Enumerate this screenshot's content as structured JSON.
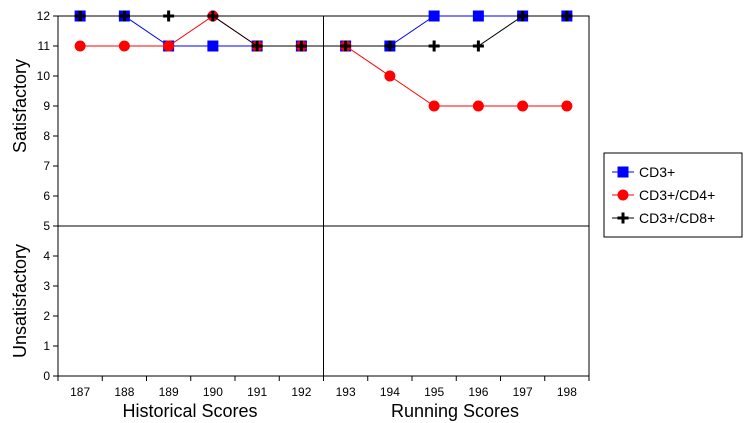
{
  "chart_data": {
    "type": "line",
    "x": [
      "187",
      "188",
      "189",
      "190",
      "191",
      "192",
      "193",
      "194",
      "195",
      "196",
      "197",
      "198"
    ],
    "ylim": [
      0,
      12
    ],
    "yticks": [
      0,
      1,
      2,
      3,
      4,
      5,
      6,
      7,
      8,
      9,
      10,
      11,
      12
    ],
    "threshold_y": 5,
    "divider_between": [
      "192",
      "193"
    ],
    "region_labels": {
      "upper": "Satisfactory",
      "lower": "Unsatisfactory",
      "left": "Historical Scores",
      "right": "Running Scores"
    },
    "grid": false,
    "legend_position": "right",
    "series": [
      {
        "name": "CD3+",
        "marker": "square",
        "color": "#0000ff",
        "line_color": "#0000ff",
        "values": [
          12,
          12,
          11,
          11,
          11,
          11,
          11,
          11,
          12,
          12,
          12,
          12
        ]
      },
      {
        "name": "CD3+/CD4+",
        "marker": "circle",
        "color": "#ff0000",
        "line_color": "#ff0000",
        "values": [
          11,
          11,
          11,
          12,
          11,
          11,
          11,
          10,
          9,
          9,
          9,
          9
        ]
      },
      {
        "name": "CD3+/CD8+",
        "marker": "plus",
        "color": "#000000",
        "line_color": "#000000",
        "values": [
          12,
          12,
          12,
          12,
          11,
          11,
          11,
          11,
          11,
          11,
          12,
          12
        ]
      }
    ]
  }
}
